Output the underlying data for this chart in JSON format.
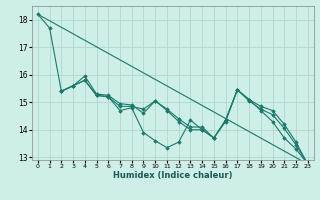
{
  "xlabel": "Humidex (Indice chaleur)",
  "ylabel": "",
  "bg_color": "#ceeee8",
  "grid_color": "#b0d8d0",
  "line_color": "#1a7a6a",
  "xlim": [
    -0.5,
    23.5
  ],
  "ylim": [
    12.9,
    18.5
  ],
  "yticks": [
    13,
    14,
    15,
    16,
    17,
    18
  ],
  "xticks": [
    0,
    1,
    2,
    3,
    4,
    5,
    6,
    7,
    8,
    9,
    10,
    11,
    12,
    13,
    14,
    15,
    16,
    17,
    18,
    19,
    20,
    21,
    22,
    23
  ],
  "series": [
    {
      "x": [
        0,
        1,
        2,
        3,
        4,
        5,
        6,
        7,
        8,
        9,
        10,
        11,
        12,
        13,
        14,
        15,
        16,
        17,
        18,
        19,
        20,
        21,
        22,
        23
      ],
      "y": [
        18.2,
        17.7,
        15.4,
        15.6,
        15.8,
        15.25,
        15.2,
        14.7,
        14.8,
        13.9,
        13.6,
        13.35,
        13.55,
        14.35,
        14.0,
        13.7,
        14.35,
        15.45,
        15.1,
        14.7,
        14.3,
        13.7,
        13.3,
        12.75
      ]
    },
    {
      "x": [
        2,
        3,
        4,
        5,
        6,
        7,
        8,
        9,
        10,
        11,
        12,
        13,
        14,
        15,
        16,
        17,
        18,
        19,
        20,
        21,
        22,
        23
      ],
      "y": [
        15.4,
        15.6,
        15.8,
        15.25,
        15.2,
        14.85,
        14.85,
        14.75,
        15.05,
        14.75,
        14.4,
        14.1,
        14.1,
        13.7,
        14.35,
        15.45,
        15.1,
        14.85,
        14.7,
        14.2,
        13.55,
        12.75
      ]
    },
    {
      "x": [
        2,
        3,
        4,
        5,
        6,
        7,
        8,
        9,
        10,
        11,
        12,
        13,
        14,
        15,
        16,
        17,
        18,
        19,
        20,
        21,
        22,
        23
      ],
      "y": [
        15.4,
        15.6,
        15.95,
        15.3,
        15.25,
        14.95,
        14.9,
        14.6,
        15.05,
        14.7,
        14.3,
        14.0,
        14.0,
        13.7,
        14.3,
        15.45,
        15.05,
        14.75,
        14.55,
        14.05,
        13.45,
        12.75
      ]
    },
    {
      "x": [
        0,
        23
      ],
      "y": [
        18.2,
        12.75
      ],
      "no_marker": true
    }
  ]
}
